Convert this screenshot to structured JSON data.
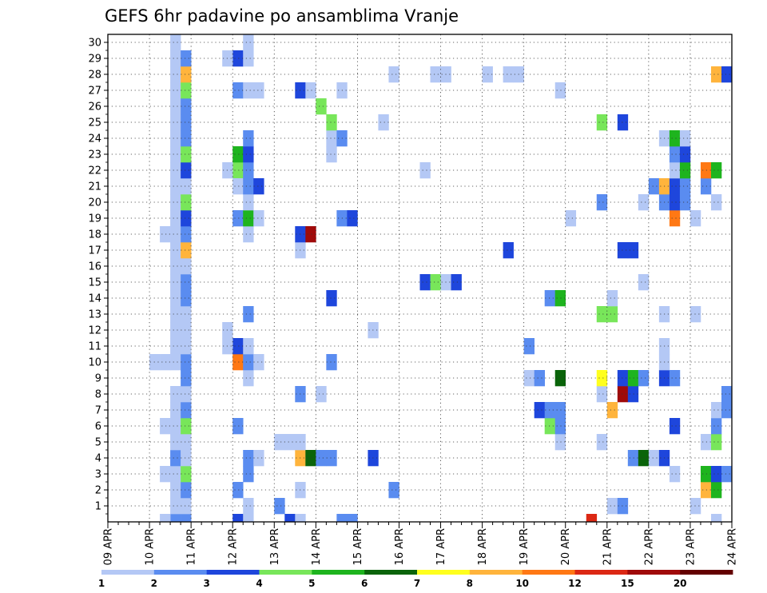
{
  "chart_data": {
    "type": "heatmap",
    "title": "GEFS 6hr padavine po ansamblima Vranje",
    "x_tick_labels": [
      "09 APR",
      "10 APR",
      "11 APR",
      "12 APR",
      "13 APR",
      "14 APR",
      "15 APR",
      "16 APR",
      "17 APR",
      "18 APR",
      "19 APR",
      "20 APR",
      "21 APR",
      "22 APR",
      "23 APR",
      "24 APR"
    ],
    "y_tick_labels": [
      "1",
      "2",
      "3",
      "4",
      "5",
      "6",
      "7",
      "8",
      "9",
      "10",
      "11",
      "12",
      "13",
      "14",
      "15",
      "16",
      "17",
      "18",
      "19",
      "20",
      "21",
      "22",
      "23",
      "24",
      "25",
      "26",
      "27",
      "28",
      "29",
      "30"
    ],
    "x_steps_per_day": 4,
    "x_range_steps": [
      0,
      60
    ],
    "y_range": [
      0,
      30
    ],
    "grid": true,
    "colorbar": {
      "labels": [
        "1",
        "2",
        "3",
        "4",
        "5",
        "6",
        "7",
        "8",
        "10",
        "12",
        "15",
        "20"
      ],
      "colors": [
        "#b4c8f5",
        "#5a8cf0",
        "#1e46dc",
        "#78e65a",
        "#1eb41e",
        "#0a640a",
        "#ffff1e",
        "#ffb43c",
        "#ff7814",
        "#dc2814",
        "#a00a0a",
        "#640000"
      ]
    },
    "cells": [
      [
        6,
        0,
        2
      ],
      [
        6,
        1,
        1
      ],
      [
        6,
        2,
        1
      ],
      [
        6,
        3,
        1
      ],
      [
        6,
        4,
        2
      ],
      [
        6,
        5,
        1
      ],
      [
        6,
        6,
        1
      ],
      [
        6,
        7,
        1
      ],
      [
        6,
        8,
        1
      ],
      [
        6,
        10,
        1
      ],
      [
        6,
        11,
        1
      ],
      [
        6,
        12,
        1
      ],
      [
        6,
        13,
        1
      ],
      [
        6,
        14,
        1
      ],
      [
        6,
        15,
        1
      ],
      [
        6,
        16,
        1
      ],
      [
        6,
        17,
        1
      ],
      [
        6,
        18,
        1
      ],
      [
        6,
        19,
        1
      ],
      [
        6,
        20,
        1
      ],
      [
        6,
        21,
        1
      ],
      [
        6,
        22,
        1
      ],
      [
        6,
        23,
        1
      ],
      [
        6,
        24,
        1
      ],
      [
        6,
        25,
        1
      ],
      [
        6,
        26,
        1
      ],
      [
        6,
        27,
        1
      ],
      [
        6,
        28,
        1
      ],
      [
        6,
        29,
        1
      ],
      [
        6,
        30,
        1
      ],
      [
        7,
        0,
        2
      ],
      [
        7,
        1,
        1
      ],
      [
        7,
        2,
        2
      ],
      [
        7,
        3,
        4
      ],
      [
        7,
        4,
        1
      ],
      [
        7,
        5,
        1
      ],
      [
        7,
        6,
        4
      ],
      [
        7,
        7,
        2
      ],
      [
        7,
        8,
        1
      ],
      [
        7,
        9,
        2
      ],
      [
        7,
        10,
        2
      ],
      [
        7,
        11,
        1
      ],
      [
        7,
        12,
        1
      ],
      [
        7,
        13,
        1
      ],
      [
        7,
        14,
        2
      ],
      [
        7,
        15,
        2
      ],
      [
        7,
        16,
        1
      ],
      [
        7,
        17,
        8
      ],
      [
        7,
        18,
        2
      ],
      [
        7,
        19,
        3
      ],
      [
        7,
        20,
        4
      ],
      [
        7,
        21,
        1
      ],
      [
        7,
        22,
        3
      ],
      [
        7,
        23,
        4
      ],
      [
        7,
        24,
        2
      ],
      [
        7,
        25,
        2
      ],
      [
        7,
        26,
        2
      ],
      [
        7,
        27,
        4
      ],
      [
        7,
        28,
        8
      ],
      [
        7,
        29,
        2
      ],
      [
        5,
        0,
        1
      ],
      [
        5,
        3,
        1
      ],
      [
        5,
        6,
        1
      ],
      [
        5,
        10,
        1
      ],
      [
        5,
        18,
        1
      ],
      [
        4,
        10,
        1
      ],
      [
        12,
        0,
        3
      ],
      [
        12,
        2,
        2
      ],
      [
        12,
        6,
        2
      ],
      [
        12,
        10,
        9
      ],
      [
        12,
        11,
        3
      ],
      [
        12,
        19,
        2
      ],
      [
        12,
        22,
        4
      ],
      [
        12,
        21,
        1
      ],
      [
        12,
        23,
        5
      ],
      [
        12,
        27,
        2
      ],
      [
        12,
        29,
        3
      ],
      [
        11,
        11,
        1
      ],
      [
        11,
        12,
        1
      ],
      [
        11,
        22,
        1
      ],
      [
        11,
        29,
        1
      ],
      [
        13,
        0,
        1
      ],
      [
        13,
        1,
        1
      ],
      [
        13,
        3,
        2
      ],
      [
        13,
        4,
        2
      ],
      [
        13,
        9,
        1
      ],
      [
        13,
        10,
        2
      ],
      [
        13,
        11,
        1
      ],
      [
        13,
        13,
        2
      ],
      [
        13,
        18,
        1
      ],
      [
        13,
        19,
        5
      ],
      [
        13,
        20,
        1
      ],
      [
        13,
        21,
        2
      ],
      [
        13,
        22,
        2
      ],
      [
        13,
        23,
        3
      ],
      [
        13,
        24,
        2
      ],
      [
        13,
        27,
        1
      ],
      [
        13,
        29,
        1
      ],
      [
        13,
        30,
        1
      ],
      [
        14,
        4,
        1
      ],
      [
        14,
        10,
        1
      ],
      [
        14,
        19,
        1
      ],
      [
        14,
        21,
        3
      ],
      [
        14,
        27,
        1
      ],
      [
        16,
        1,
        2
      ],
      [
        16,
        5,
        1
      ],
      [
        17,
        0,
        3
      ],
      [
        17,
        5,
        1
      ],
      [
        18,
        0,
        1
      ],
      [
        18,
        2,
        1
      ],
      [
        18,
        4,
        8
      ],
      [
        18,
        5,
        1
      ],
      [
        18,
        8,
        2
      ],
      [
        18,
        17,
        1
      ],
      [
        18,
        18,
        3
      ],
      [
        18,
        27,
        3
      ],
      [
        19,
        4,
        6
      ],
      [
        19,
        18,
        11
      ],
      [
        19,
        27,
        1
      ],
      [
        20,
        4,
        2
      ],
      [
        20,
        8,
        1
      ],
      [
        20,
        26,
        4
      ],
      [
        21,
        4,
        2
      ],
      [
        21,
        10,
        2
      ],
      [
        21,
        14,
        3
      ],
      [
        21,
        23,
        1
      ],
      [
        21,
        24,
        1
      ],
      [
        21,
        25,
        4
      ],
      [
        22,
        0,
        2
      ],
      [
        22,
        19,
        2
      ],
      [
        22,
        24,
        2
      ],
      [
        22,
        27,
        1
      ],
      [
        23,
        0,
        2
      ],
      [
        23,
        19,
        3
      ],
      [
        25,
        4,
        3
      ],
      [
        25,
        12,
        1
      ],
      [
        26,
        25,
        1
      ],
      [
        27,
        2,
        2
      ],
      [
        27,
        28,
        1
      ],
      [
        30,
        15,
        3
      ],
      [
        30,
        22,
        1
      ],
      [
        31,
        15,
        4
      ],
      [
        31,
        28,
        1
      ],
      [
        32,
        15,
        1
      ],
      [
        32,
        28,
        1
      ],
      [
        33,
        15,
        3
      ],
      [
        36,
        28,
        1
      ],
      [
        38,
        17,
        3
      ],
      [
        38,
        28,
        1
      ],
      [
        39,
        28,
        1
      ],
      [
        40,
        9,
        1
      ],
      [
        40,
        11,
        2
      ],
      [
        41,
        7,
        3
      ],
      [
        41,
        9,
        2
      ],
      [
        42,
        6,
        4
      ],
      [
        42,
        7,
        2
      ],
      [
        42,
        14,
        2
      ],
      [
        43,
        5,
        1
      ],
      [
        43,
        6,
        2
      ],
      [
        43,
        7,
        2
      ],
      [
        43,
        9,
        6
      ],
      [
        43,
        14,
        5
      ],
      [
        43,
        27,
        1
      ],
      [
        44,
        19,
        1
      ],
      [
        46,
        0,
        10
      ],
      [
        47,
        5,
        1
      ],
      [
        47,
        8,
        1
      ],
      [
        47,
        9,
        7
      ],
      [
        47,
        13,
        4
      ],
      [
        47,
        20,
        2
      ],
      [
        47,
        25,
        4
      ],
      [
        48,
        1,
        1
      ],
      [
        48,
        7,
        8
      ],
      [
        48,
        13,
        4
      ],
      [
        48,
        14,
        1
      ],
      [
        49,
        1,
        2
      ],
      [
        49,
        8,
        11
      ],
      [
        49,
        9,
        3
      ],
      [
        49,
        17,
        3
      ],
      [
        49,
        25,
        3
      ],
      [
        50,
        4,
        2
      ],
      [
        50,
        8,
        3
      ],
      [
        50,
        9,
        5
      ],
      [
        50,
        17,
        3
      ],
      [
        51,
        4,
        6
      ],
      [
        51,
        9,
        2
      ],
      [
        51,
        15,
        1
      ],
      [
        51,
        20,
        1
      ],
      [
        52,
        4,
        1
      ],
      [
        52,
        21,
        2
      ],
      [
        53,
        4,
        3
      ],
      [
        53,
        9,
        3
      ],
      [
        53,
        10,
        1
      ],
      [
        53,
        11,
        1
      ],
      [
        53,
        13,
        1
      ],
      [
        53,
        20,
        2
      ],
      [
        53,
        21,
        8
      ],
      [
        53,
        24,
        1
      ],
      [
        54,
        3,
        1
      ],
      [
        54,
        6,
        3
      ],
      [
        54,
        9,
        2
      ],
      [
        54,
        19,
        9
      ],
      [
        54,
        20,
        3
      ],
      [
        54,
        21,
        3
      ],
      [
        54,
        22,
        1
      ],
      [
        54,
        23,
        2
      ],
      [
        54,
        24,
        5
      ],
      [
        55,
        20,
        2
      ],
      [
        55,
        21,
        2
      ],
      [
        55,
        22,
        5
      ],
      [
        55,
        23,
        3
      ],
      [
        55,
        24,
        1
      ],
      [
        56,
        1,
        1
      ],
      [
        56,
        13,
        1
      ],
      [
        56,
        19,
        1
      ],
      [
        57,
        2,
        8
      ],
      [
        57,
        3,
        5
      ],
      [
        57,
        5,
        1
      ],
      [
        57,
        21,
        2
      ],
      [
        57,
        22,
        9
      ],
      [
        58,
        0,
        1
      ],
      [
        58,
        2,
        5
      ],
      [
        58,
        3,
        3
      ],
      [
        58,
        5,
        4
      ],
      [
        58,
        6,
        2
      ],
      [
        58,
        7,
        1
      ],
      [
        58,
        20,
        1
      ],
      [
        58,
        22,
        5
      ],
      [
        58,
        28,
        8
      ],
      [
        59,
        3,
        2
      ],
      [
        59,
        7,
        2
      ],
      [
        59,
        8,
        2
      ],
      [
        59,
        28,
        3
      ]
    ]
  }
}
